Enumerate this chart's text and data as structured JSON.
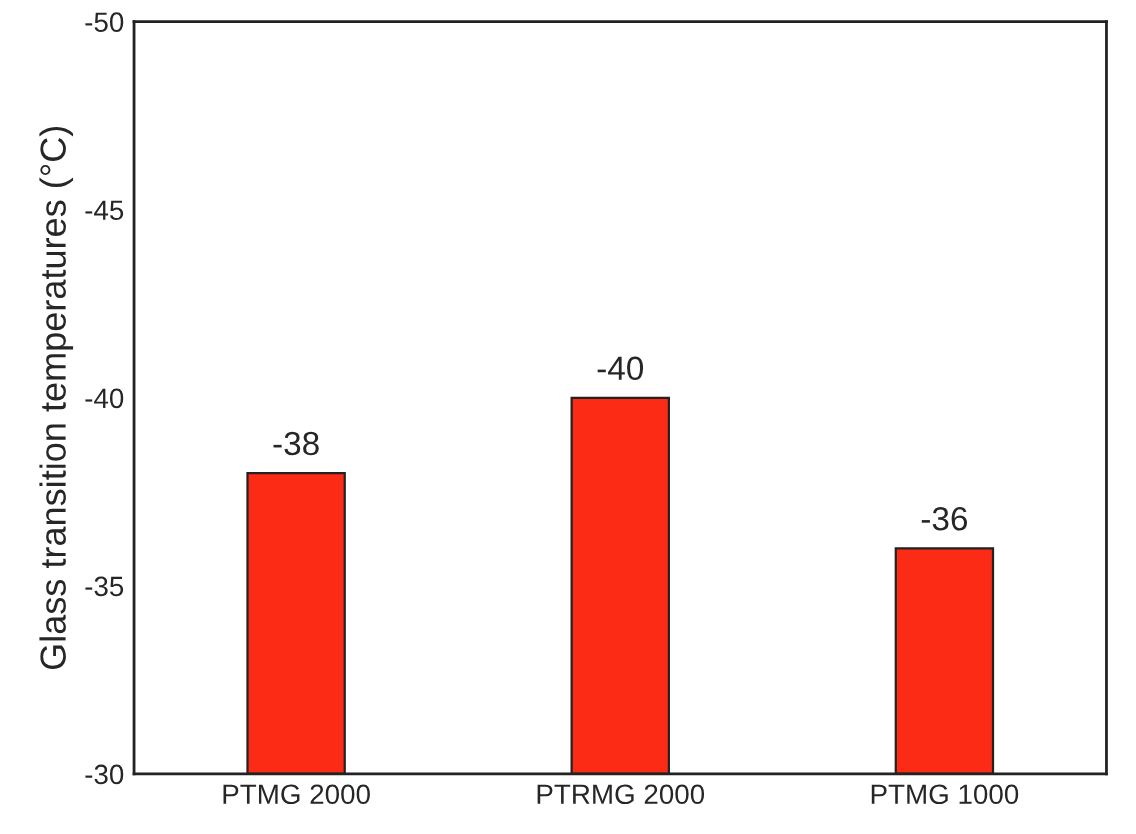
{
  "chart_data": {
    "type": "bar",
    "ylabel": "Glass transition temperatures (°C)",
    "categories": [
      "PTMG 2000",
      "PTRMG 2000",
      "PTMG 1000"
    ],
    "values": [
      -38,
      -40,
      -36
    ],
    "color": "#fc2b16",
    "ylim": [
      -30,
      -50
    ],
    "yticks": [
      -30,
      -35,
      -40,
      -45,
      -50
    ],
    "grid": false,
    "data_labels": true
  }
}
